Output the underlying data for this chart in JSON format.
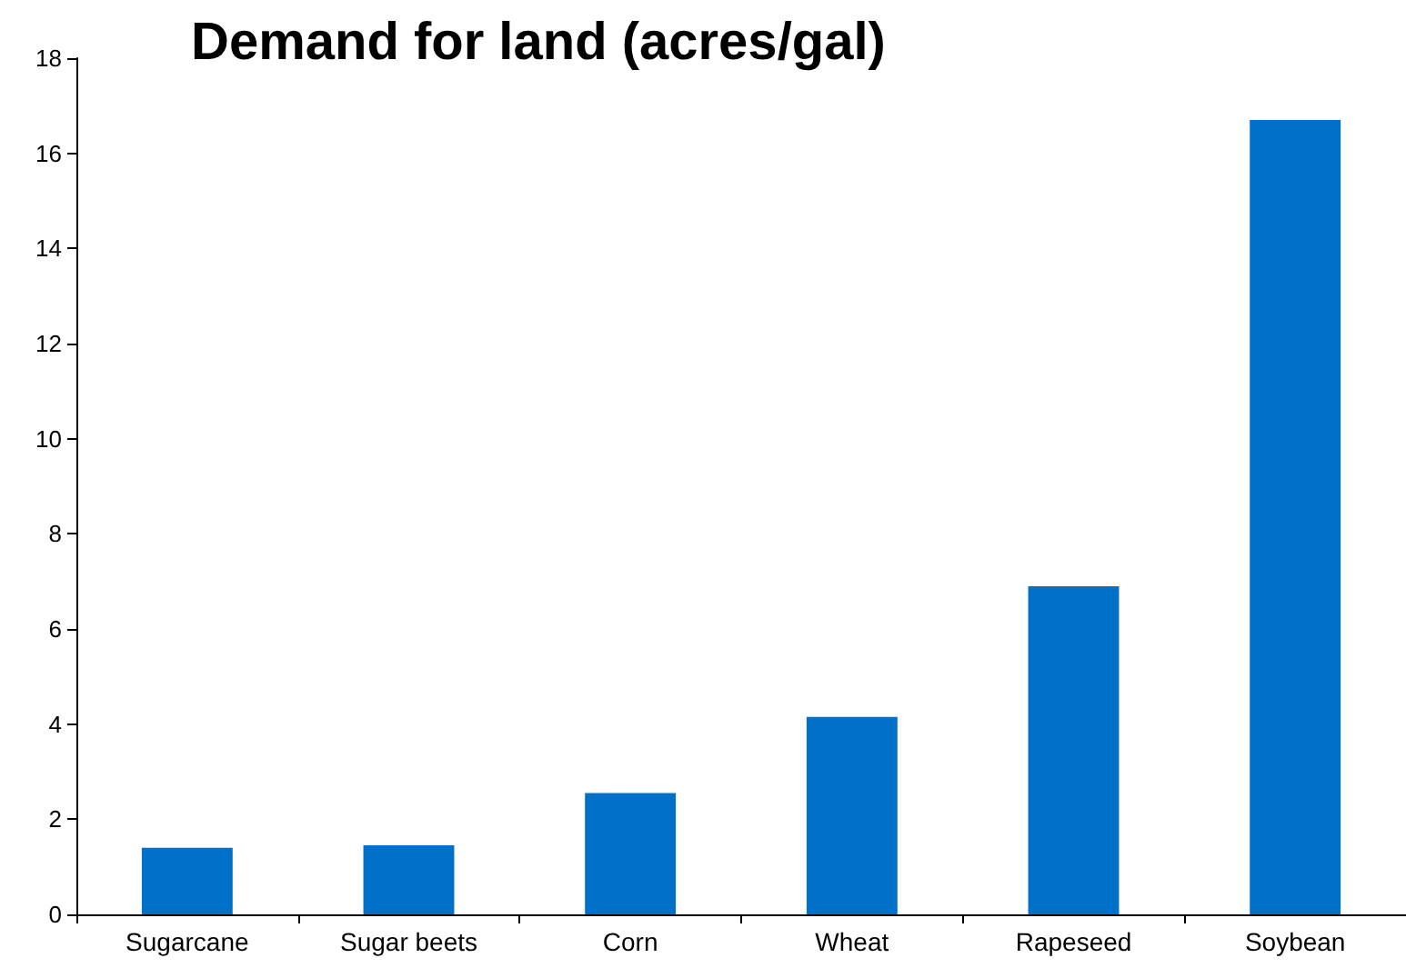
{
  "chart_data": {
    "type": "bar",
    "title": "Demand for land (acres/gal)",
    "categories": [
      "Sugarcane",
      "Sugar beets",
      "Corn",
      "Wheat",
      "Rapeseed",
      "Soybean"
    ],
    "values": [
      1.4,
      1.45,
      2.55,
      4.15,
      6.9,
      16.7
    ],
    "color": "#0070c8",
    "ylim": [
      0,
      18
    ],
    "yticks": [
      0,
      2,
      4,
      6,
      8,
      10,
      12,
      14,
      16,
      18
    ],
    "grid": false
  }
}
